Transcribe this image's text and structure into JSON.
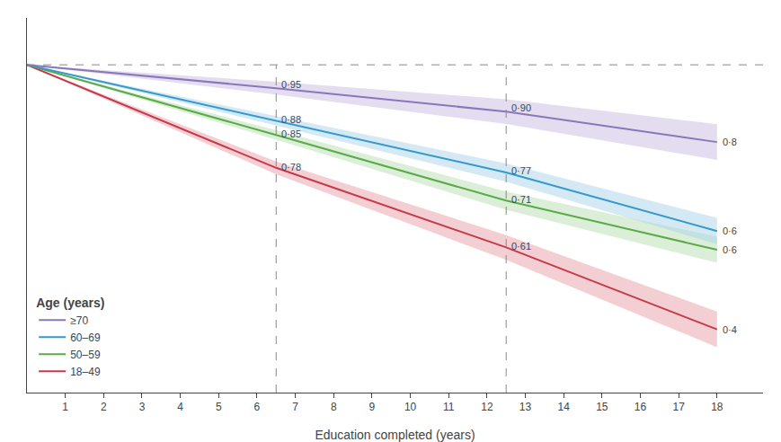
{
  "chart_data": {
    "type": "line",
    "x_label": "Education completed (years)",
    "x": [
      0,
      6.5,
      12.5,
      18
    ],
    "xlim": [
      0.0,
      19.2
    ],
    "xticks": [
      1,
      2,
      3,
      4,
      5,
      6,
      7,
      8,
      9,
      10,
      11,
      12,
      13,
      14,
      15,
      16,
      17,
      18
    ],
    "ylim": [
      0.3,
      1.1
    ],
    "tick_labels": "x",
    "grid": false,
    "legend": "lower left",
    "legend_title": "Age (years)",
    "hline": 1.0,
    "vlines": [
      6.5,
      12.5
    ],
    "series": [
      {
        "name": "18–49",
        "color": "#c8384a",
        "fill_color": "#e8a0a8",
        "values": [
          1.0,
          0.78,
          0.61,
          0.435
        ],
        "lower": [
          1.0,
          0.7662778,
          0.5836111,
          0.397
        ],
        "upper": [
          1.0,
          0.7937222,
          0.6363889,
          0.473
        ]
      },
      {
        "name": "50–59",
        "color": "#5aaa4a",
        "fill_color": "#b8ddb0",
        "values": [
          1.0,
          0.85,
          0.71,
          0.605
        ],
        "lower": [
          1.0,
          0.8398889,
          0.6905556,
          0.577
        ],
        "upper": [
          1.0,
          0.8601111,
          0.7294444,
          0.633
        ]
      },
      {
        "name": "60–69",
        "color": "#3399cc",
        "fill_color": "#aad4ea",
        "values": [
          1.0,
          0.88,
          0.77,
          0.645
        ],
        "lower": [
          1.0,
          0.8698889,
          0.7505556,
          0.617
        ],
        "upper": [
          1.0,
          0.8901111,
          0.7894444,
          0.673
        ]
      },
      {
        "name": "≥70",
        "color": "#8877bb",
        "fill_color": "#c8bce0",
        "values": [
          1.0,
          0.95,
          0.9,
          0.835
        ],
        "lower": [
          1.0,
          0.9362778,
          0.8736111,
          0.797
        ],
        "upper": [
          1.0,
          0.9637222,
          0.9263889,
          0.873
        ]
      }
    ],
    "annotations": [
      {
        "text": "0·95",
        "x": 6.5,
        "y": 0.958,
        "color": "#444444"
      },
      {
        "text": "0·88",
        "x": 6.5,
        "y": 0.883,
        "color": "#444444"
      },
      {
        "text": "0·85",
        "x": 6.5,
        "y": 0.852,
        "color": "#444444"
      },
      {
        "text": "0·78",
        "x": 6.5,
        "y": 0.782,
        "color": "#444444"
      },
      {
        "text": "0·90",
        "x": 12.5,
        "y": 0.908,
        "color": "#444444"
      },
      {
        "text": "0·77",
        "x": 12.5,
        "y": 0.773,
        "color": "#444444"
      },
      {
        "text": "0·71",
        "x": 12.5,
        "y": 0.713,
        "color": "#444444"
      },
      {
        "text": "0·61",
        "x": 12.5,
        "y": 0.613,
        "color": "#444444"
      },
      {
        "text": "0·8",
        "x": 18,
        "y": 0.835,
        "color": "#444444"
      },
      {
        "text": "0·6",
        "x": 18,
        "y": 0.645,
        "color": "#444444"
      },
      {
        "text": "0·6",
        "x": 18,
        "y": 0.605,
        "color": "#444444"
      },
      {
        "text": "0·4",
        "x": 18,
        "y": 0.435,
        "color": "#444444"
      }
    ]
  }
}
